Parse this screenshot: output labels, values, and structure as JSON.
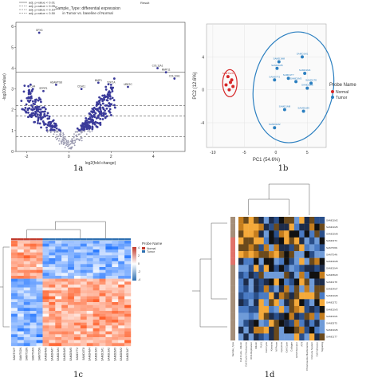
{
  "captions": [
    "1a",
    "1b",
    "1c",
    "1d"
  ],
  "volcano": {
    "type": "scatter",
    "title": "Sample_Type: differential expression",
    "subtitle": "in Tumor vs. baseline of Normal",
    "legend_top": "Result",
    "legend": [
      "adj. p-value < 0.01",
      "adj. p-value < 0.05",
      "adj. p-value < 0.10",
      "adj. p-value < 0.50"
    ],
    "xlabel": "log2(fold change)",
    "ylabel": "-log10(p-value)",
    "xlim": [
      -2.5,
      5.5
    ],
    "ylim": [
      0,
      6.2
    ],
    "xticks": [
      "-2",
      "0",
      "2",
      "4"
    ],
    "yticks": [
      "0",
      "1",
      "2",
      "3",
      "4",
      "5",
      "6"
    ],
    "thresholds": [
      3.8,
      2.2,
      1.7,
      0.7
    ],
    "colors": {
      "sig": "#3a3a9a",
      "ns": "#9a9ab0",
      "line": "#555555"
    },
    "labels": [
      {
        "x": -1.4,
        "y": 5.7,
        "text": "GPX3"
      },
      {
        "x": 4.2,
        "y": 4.0,
        "text": "COL11A1"
      },
      {
        "x": 4.6,
        "y": 3.8,
        "text": "MMP11"
      },
      {
        "x": 5.0,
        "y": 3.5,
        "text": "COL10A1"
      },
      {
        "x": -1.7,
        "y": 3.0,
        "text": "CA4"
      },
      {
        "x": -1.2,
        "y": 2.9,
        "text": "SFRP1"
      },
      {
        "x": -0.6,
        "y": 3.2,
        "text": "ADAMTS8"
      },
      {
        "x": 0.6,
        "y": 3.0,
        "text": "CDH11"
      },
      {
        "x": 1.4,
        "y": 3.3,
        "text": "MMP1"
      },
      {
        "x": 2.0,
        "y": 3.2,
        "text": "TOP2A"
      },
      {
        "x": 2.8,
        "y": 3.1,
        "text": "UBE2C"
      }
    ]
  },
  "pca": {
    "type": "scatter",
    "xlabel": "PC1 (54.6%)",
    "ylabel": "PC2 (12.6%)",
    "xlim": [
      -11,
      8
    ],
    "ylim": [
      -7,
      8
    ],
    "xticks": [
      "-10",
      "-5",
      "0",
      "5"
    ],
    "yticks": [
      "-4",
      "0",
      "4"
    ],
    "legend_title": "Probe Name",
    "groups": [
      {
        "name": "Normal",
        "color": "#d62728"
      },
      {
        "name": "Tumor",
        "color": "#2b7fc0"
      }
    ],
    "points": [
      {
        "x": -7.6,
        "y": 1.6,
        "g": 0,
        "label": "SAMTS2N"
      },
      {
        "x": -7.2,
        "y": 0.9,
        "g": 0,
        "label": ""
      },
      {
        "x": -7.9,
        "y": 0.6,
        "g": 0,
        "label": ""
      },
      {
        "x": -7.4,
        "y": 0.0,
        "g": 0,
        "label": ""
      },
      {
        "x": -6.8,
        "y": 0.4,
        "g": 0,
        "label": ""
      },
      {
        "x": -7.0,
        "y": 1.2,
        "g": 0,
        "label": ""
      },
      {
        "x": 0.5,
        "y": 3.4,
        "g": 1,
        "label": "SAMD1M8"
      },
      {
        "x": 0.2,
        "y": 2.6,
        "g": 1,
        "label": "SAMD1M5"
      },
      {
        "x": -0.2,
        "y": 1.2,
        "g": 1,
        "label": "SAMD7T2"
      },
      {
        "x": 2.0,
        "y": 1.4,
        "g": 1,
        "label": "SAMD1T7"
      },
      {
        "x": 3.2,
        "y": 1.0,
        "g": 1,
        "label": "SAMD1M3"
      },
      {
        "x": 4.2,
        "y": 4.0,
        "g": 1,
        "label": "SAMD1M1"
      },
      {
        "x": 4.6,
        "y": 2.0,
        "g": 1,
        "label": "SAMD1M4"
      },
      {
        "x": 5.6,
        "y": 0.8,
        "g": 1,
        "label": "SAMD1T8"
      },
      {
        "x": 5.0,
        "y": 0.2,
        "g": 1,
        "label": "SAMD1M6"
      },
      {
        "x": 1.4,
        "y": -2.4,
        "g": 1,
        "label": "SAMD1M8"
      },
      {
        "x": 4.4,
        "y": -2.6,
        "g": 1,
        "label": "SAMD1M9"
      },
      {
        "x": -0.2,
        "y": -4.6,
        "g": 1,
        "label": "SAMD1M2"
      }
    ]
  },
  "heat_c": {
    "type": "heatmap",
    "legend_title": "Probe Name",
    "legend_items": [
      "Normal",
      "Tumor"
    ],
    "scale_ticks": [
      "4",
      "2",
      "0",
      "-2",
      "-4"
    ],
    "col_labels": [
      "SAMTS2T",
      "SAMTS2N",
      "SAMTS3N",
      "SAMTS4N",
      "SAMTS5N",
      "SAMD4M8",
      "SAMD4M7",
      "SAMD1M4",
      "SAMD4M5",
      "SAMD5M5",
      "SAMD7T2",
      "SAMD3T8",
      "SAMD4M4",
      "SAMD1M3",
      "SAMD1M1",
      "SAMD1M2",
      "SAMD2M9",
      "SAMD5M2",
      "SAMD1M7"
    ],
    "normal_cols": 5,
    "rows": 36
  },
  "heat_d": {
    "type": "heatmap",
    "row_labels": [
      "SAMD1M2",
      "SAMD1M5",
      "SAMD2M8",
      "SAMD3T3",
      "SAMTS5N",
      "SAMTS4N",
      "SAMD4M8",
      "SAMD1M4",
      "SAMD5M3",
      "SAMD1T8",
      "SAMD4M7",
      "SAMD1M9",
      "SAMD2T2",
      "SAMD1M3",
      "SAMD1M1",
      "SAMD5T5",
      "SAMD1M6",
      "SAMD1T7"
    ],
    "col_labels": [
      "Sample_Type",
      "Cell Cycle - Mitotic",
      "Cell Cycle Checkpoints",
      "DNA Replication",
      "Mitotic",
      "PLK1",
      "Cell Cycle",
      "Kinesins",
      "M Phase",
      "Apoptosis",
      "Cell Cycle",
      "Collagen",
      "ECM Receptor",
      "ATR",
      "Chromosome Maintenance",
      "Immune System",
      "Cell Adhesion",
      "Signaling"
    ]
  }
}
